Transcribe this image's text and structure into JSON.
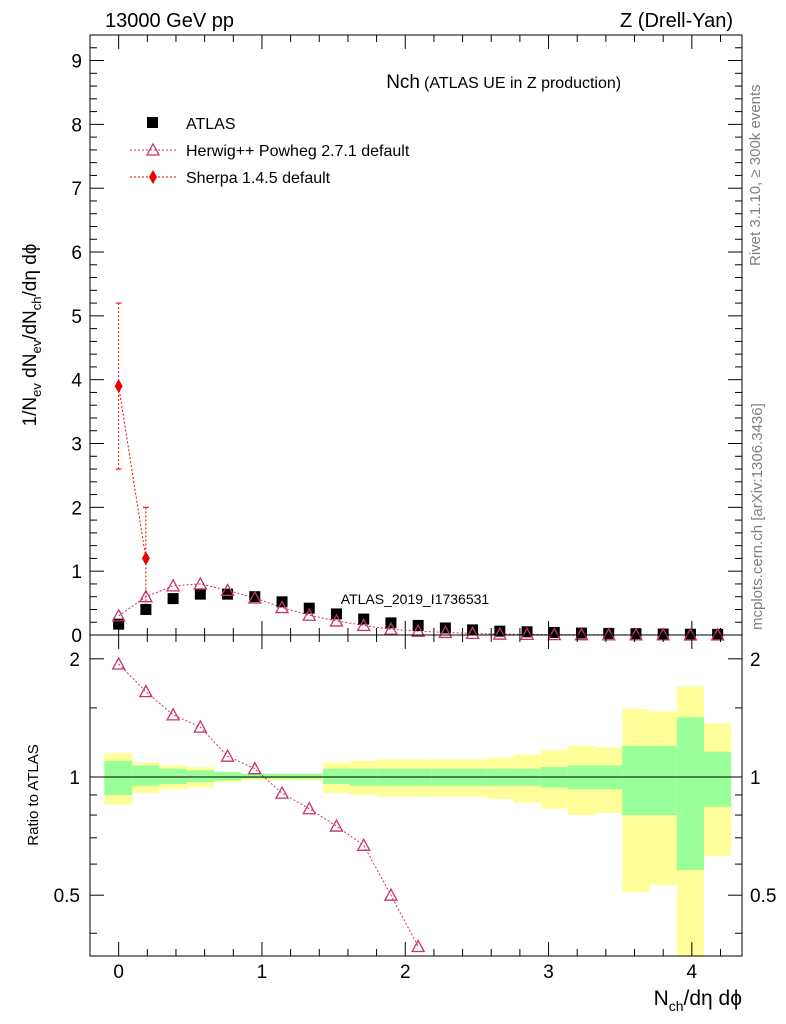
{
  "header": {
    "left": "13000 GeV pp",
    "right": "Z (Drell-Yan)"
  },
  "side_labels": {
    "rivet": "Rivet 3.1.10, ≥ 300k events",
    "mcplots": "mcplots.cern.ch [arXiv:1306.3436]"
  },
  "colors": {
    "atlas": "#000000",
    "herwig": "#cc3366",
    "sherpa": "#ee0000",
    "band_inner": "#99ff99",
    "band_outer": "#ffff99"
  },
  "chart_data": [
    {
      "type": "scatter",
      "title": "Nch",
      "subtitle": "(ATLAS UE in Z production)",
      "ylabel": "1/N_ev dN_ev/dN_ch/dη dϕ",
      "xlabel": "N_ch/dη dϕ",
      "xlim": [
        -0.2,
        4.35
      ],
      "ylim": [
        0,
        9.4
      ],
      "yticks": [
        0,
        1,
        2,
        3,
        4,
        5,
        6,
        7,
        8,
        9
      ],
      "xticks": [
        0,
        1,
        2,
        3,
        4
      ],
      "watermark": "ATLAS_2019_I1736531",
      "legend": [
        "ATLAS",
        "Herwig++ Powheg 2.7.1 default",
        "Sherpa 1.4.5 default"
      ],
      "series": [
        {
          "name": "ATLAS",
          "x": [
            0.0,
            0.19,
            0.38,
            0.57,
            0.76,
            0.95,
            1.14,
            1.33,
            1.52,
            1.71,
            1.9,
            2.09,
            2.28,
            2.47,
            2.66,
            2.85,
            3.04,
            3.23,
            3.42,
            3.61,
            3.8,
            3.99,
            4.18
          ],
          "y": [
            0.17,
            0.4,
            0.57,
            0.64,
            0.64,
            0.6,
            0.52,
            0.42,
            0.33,
            0.25,
            0.19,
            0.15,
            0.11,
            0.08,
            0.06,
            0.05,
            0.04,
            0.03,
            0.025,
            0.02,
            0.015,
            0.012,
            0.01
          ]
        },
        {
          "name": "Herwig++ Powheg 2.7.1 default",
          "x": [
            0.0,
            0.19,
            0.38,
            0.57,
            0.76,
            0.95,
            1.14,
            1.33,
            1.52,
            1.71,
            1.9,
            2.09,
            2.28,
            2.47,
            2.66,
            2.85,
            3.04,
            3.23,
            3.42,
            3.61,
            3.8,
            3.99,
            4.18
          ],
          "y": [
            0.3,
            0.6,
            0.77,
            0.8,
            0.7,
            0.58,
            0.43,
            0.31,
            0.22,
            0.15,
            0.09,
            0.06,
            0.04,
            0.025,
            0.015,
            0.01,
            0.007,
            0.005,
            0.003,
            0.002,
            0.0015,
            0.001,
            0.0008
          ]
        },
        {
          "name": "Sherpa 1.4.5 default",
          "x": [
            0.0,
            0.19
          ],
          "y": [
            3.9,
            1.2
          ],
          "yerr_low": [
            1.3,
            0.8
          ],
          "yerr_high": [
            1.3,
            0.8
          ]
        }
      ]
    },
    {
      "type": "scatter",
      "ylabel": "Ratio to ATLAS",
      "ylim": [
        0.35,
        2.3
      ],
      "yticks": [
        0.5,
        1,
        2
      ],
      "xlim": [
        -0.2,
        4.35
      ],
      "reference": 1.0,
      "bands": {
        "edges": [
          -0.1,
          0.095,
          0.285,
          0.475,
          0.665,
          0.855,
          1.045,
          1.235,
          1.425,
          1.615,
          1.805,
          1.995,
          2.185,
          2.375,
          2.565,
          2.755,
          2.945,
          3.135,
          3.325,
          3.515,
          3.705,
          3.895,
          4.085,
          4.275
        ],
        "inner_low": [
          0.9,
          0.95,
          0.96,
          0.97,
          0.98,
          0.99,
          0.99,
          0.99,
          0.96,
          0.95,
          0.95,
          0.95,
          0.95,
          0.95,
          0.95,
          0.95,
          0.94,
          0.93,
          0.93,
          0.8,
          0.8,
          0.58,
          0.84
        ],
        "inner_high": [
          1.1,
          1.07,
          1.05,
          1.04,
          1.03,
          1.02,
          1.02,
          1.02,
          1.05,
          1.05,
          1.05,
          1.05,
          1.05,
          1.05,
          1.05,
          1.05,
          1.06,
          1.07,
          1.07,
          1.2,
          1.2,
          1.42,
          1.16
        ],
        "outer_low": [
          0.85,
          0.91,
          0.93,
          0.94,
          0.97,
          0.98,
          0.98,
          0.98,
          0.91,
          0.9,
          0.89,
          0.89,
          0.89,
          0.89,
          0.88,
          0.86,
          0.83,
          0.8,
          0.81,
          0.51,
          0.53,
          0.3,
          0.63
        ],
        "outer_high": [
          1.15,
          1.09,
          1.07,
          1.06,
          1.03,
          1.02,
          1.02,
          1.02,
          1.09,
          1.1,
          1.11,
          1.11,
          1.11,
          1.11,
          1.12,
          1.14,
          1.17,
          1.2,
          1.19,
          1.49,
          1.47,
          1.7,
          1.37
        ]
      },
      "series": [
        {
          "name": "Herwig++ Powheg 2.7.1 default",
          "x": [
            0.0,
            0.19,
            0.38,
            0.57,
            0.76,
            0.95,
            1.14,
            1.33,
            1.52,
            1.71,
            1.9,
            2.09
          ],
          "y": [
            1.94,
            1.65,
            1.44,
            1.34,
            1.13,
            1.05,
            0.91,
            0.83,
            0.75,
            0.67,
            0.5,
            0.37
          ]
        }
      ]
    }
  ]
}
